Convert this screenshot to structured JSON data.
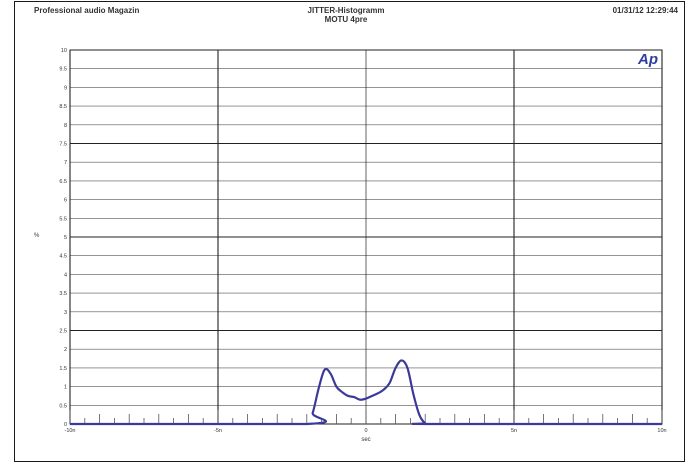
{
  "header": {
    "left": "Professional audio Magazin",
    "center_line1": "JITTER-Histogramm",
    "center_line2": "MOTU 4pre",
    "right": "01/31/12 12:29:44"
  },
  "logo": "Ap",
  "colors": {
    "curve": "#3b3a9a",
    "grid": "#555555",
    "major_grid": "#222222",
    "logo": "#2d3fa0"
  },
  "chart_data": {
    "type": "line",
    "title": "JITTER-Histogramm",
    "subtitle": "MOTU 4pre",
    "xlabel": "sec",
    "ylabel": "%",
    "xlim": [
      -10,
      10
    ],
    "ylim": [
      0,
      10
    ],
    "x_unit": "ns",
    "x_ticks": [
      -10,
      -5,
      0,
      5,
      10
    ],
    "x_tick_labels": [
      "-10n",
      "-5n",
      "0",
      "5n",
      "10n"
    ],
    "y_ticks": [
      0,
      0.5,
      1,
      1.5,
      2,
      2.5,
      3,
      3.5,
      4,
      4.5,
      5,
      5.5,
      6,
      6.5,
      7,
      7.5,
      8,
      8.5,
      9,
      9.5,
      10
    ],
    "y_tick_labels": [
      "0",
      "0.5",
      "1",
      "1.5",
      "2",
      "2.5",
      "3",
      "3.5",
      "4",
      "4.5",
      "5",
      "5.5",
      "6",
      "6.5",
      "7",
      "7.5",
      "8",
      "8.5",
      "9",
      "9.5",
      "10"
    ],
    "grid": true,
    "series": [
      {
        "x": [
          -10,
          -2.0,
          -1.8,
          -1.6,
          -1.4,
          -1.2,
          -1.0,
          -0.8,
          -0.6,
          -0.4,
          -0.2,
          0.0,
          0.2,
          0.4,
          0.6,
          0.8,
          1.0,
          1.2,
          1.4,
          1.6,
          1.8,
          2.0,
          2.2,
          10
        ],
        "y": [
          0,
          0,
          0.3,
          0.95,
          1.45,
          1.35,
          1.0,
          0.85,
          0.75,
          0.72,
          0.65,
          0.68,
          0.75,
          0.82,
          0.92,
          1.1,
          1.5,
          1.7,
          1.5,
          0.8,
          0.25,
          0.02,
          0,
          0
        ]
      }
    ]
  }
}
